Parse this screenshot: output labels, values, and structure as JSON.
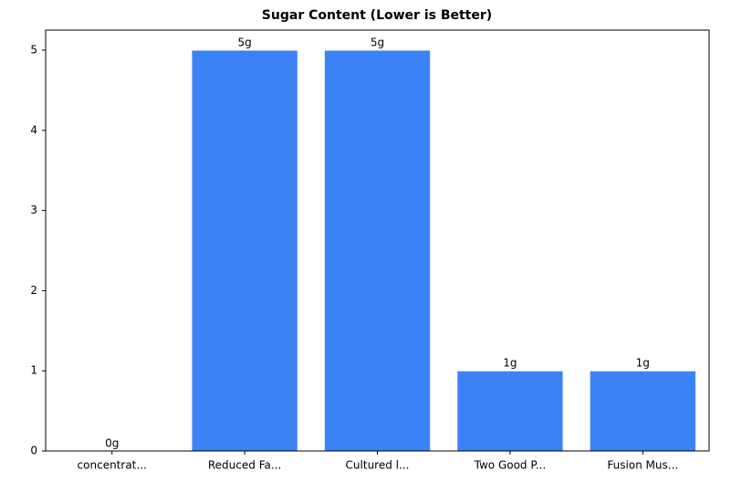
{
  "chart_data": {
    "type": "bar",
    "title": "Sugar Content (Lower is Better)",
    "categories": [
      "concentrat...",
      "Reduced Fa...",
      "Cultured l...",
      "Two Good P...",
      "Fusion Mus..."
    ],
    "values": [
      0,
      5,
      5,
      1,
      1
    ],
    "value_labels": [
      "0g",
      "5g",
      "5g",
      "1g",
      "1g"
    ],
    "color": "#3b82f6",
    "ylim": [
      0,
      5.25
    ],
    "yticks": [
      0,
      1,
      2,
      3,
      4,
      5
    ],
    "grid": false
  }
}
